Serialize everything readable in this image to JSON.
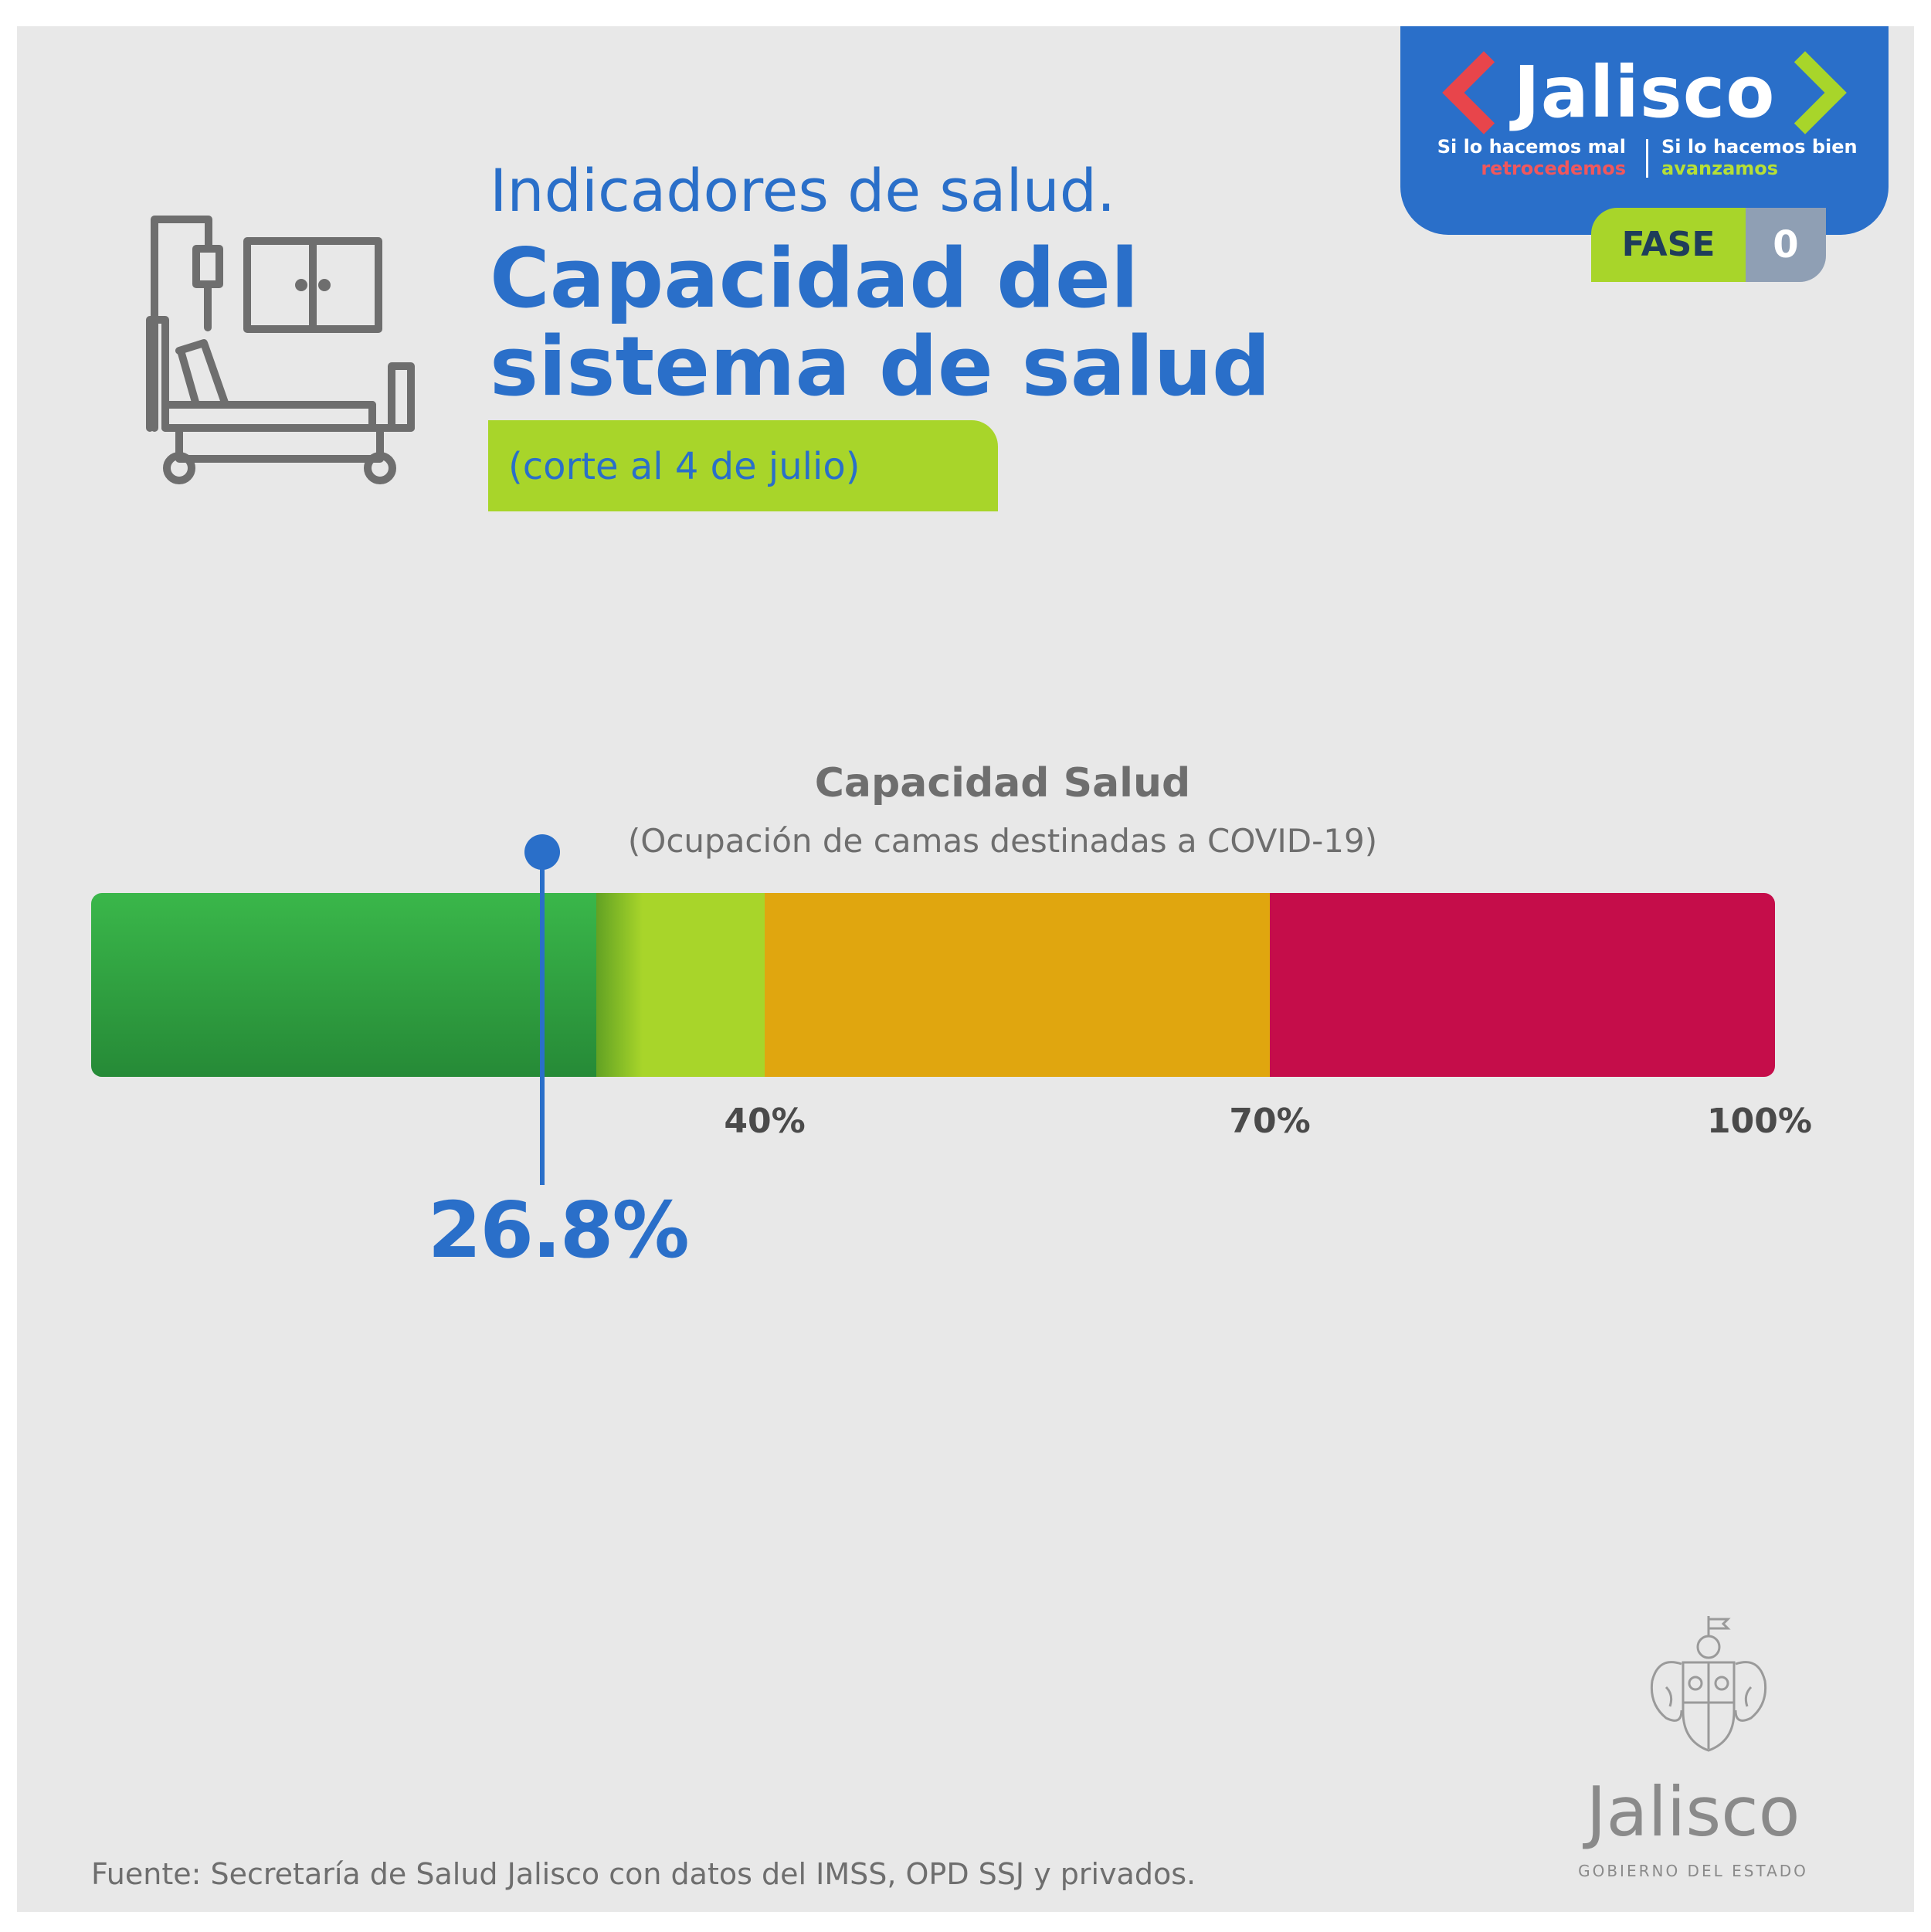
{
  "brand": {
    "word": "Jalisco",
    "slogan_left_line1": "Si lo hacemos mal",
    "slogan_left_line2": "retrocedemos",
    "slogan_right_line1": "Si lo hacemos bien",
    "slogan_right_line2": "avanzamos",
    "phase_label": "FASE",
    "phase_number": "0"
  },
  "header": {
    "line1": "Indicadores de salud.",
    "title": "Capacidad del sistema de salud",
    "cutoff": "(corte al 4 de julio)"
  },
  "footer": {
    "source": "Fuente: Secretaría de Salud Jalisco con datos del IMSS, OPD SSJ y privados.",
    "gov_word": "Jalisco",
    "gov_sub": "GOBIERNO DEL ESTADO"
  },
  "colors": {
    "blue": "#2a6fc9",
    "green": "#3ab74a",
    "lime": "#a8d52a",
    "orange": "#e0a60f",
    "red": "#c50d4a",
    "background": "#e8e8e8"
  },
  "chart_data": {
    "type": "gauge-bar",
    "title": "Capacidad Salud",
    "subtitle": "(Ocupación de camas destinadas a COVID-19)",
    "xlim": [
      0,
      100
    ],
    "value": 26.8,
    "value_label": "26.8%",
    "bands": [
      {
        "from": 0,
        "to": 30,
        "color": "#3ab74a"
      },
      {
        "from": 30,
        "to": 40,
        "color": "#a8d52a"
      },
      {
        "from": 40,
        "to": 70,
        "color": "#e0a60f"
      },
      {
        "from": 70,
        "to": 100,
        "color": "#c50d4a"
      }
    ],
    "ticks": [
      {
        "value": 40,
        "label": "40%"
      },
      {
        "value": 70,
        "label": "70%"
      },
      {
        "value": 100,
        "label": "100%"
      }
    ]
  }
}
